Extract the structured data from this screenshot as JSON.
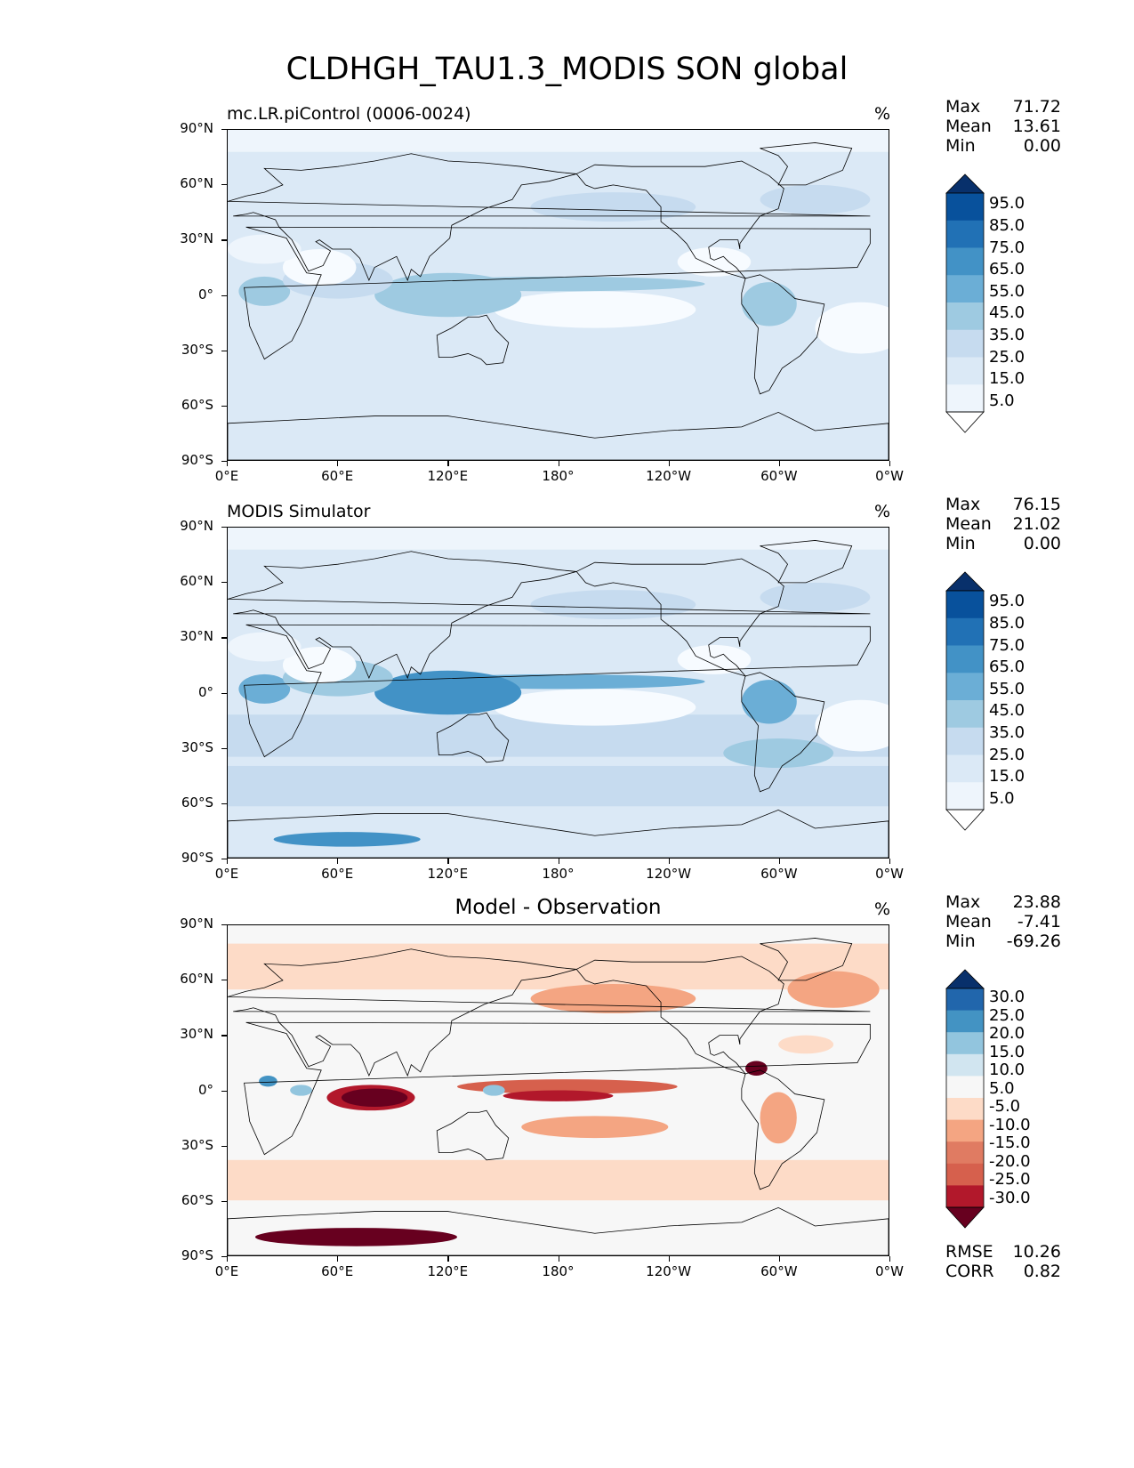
{
  "figure": {
    "title": "CLDHGH_TAU1.3_MODIS SON global",
    "lat_ticks": [
      "90°N",
      "60°N",
      "30°N",
      "0°",
      "30°S",
      "60°S",
      "90°S"
    ],
    "lon_ticks": [
      "0°E",
      "60°E",
      "120°E",
      "180°",
      "120°W",
      "60°W",
      "0°W"
    ]
  },
  "panels": [
    {
      "id": "model",
      "title_left": "mc.LR.piControl (0006-0024)",
      "title_center": "",
      "units": "%",
      "stats": [
        {
          "label": "Max",
          "value": "71.72"
        },
        {
          "label": "Mean",
          "value": "13.61"
        },
        {
          "label": "Min",
          "value": "0.00"
        }
      ],
      "colorbar": {
        "labels": [
          "95.0",
          "85.0",
          "75.0",
          "65.0",
          "55.0",
          "45.0",
          "35.0",
          "25.0",
          "15.0",
          "5.0"
        ],
        "colors": [
          "#08306b",
          "#08519c",
          "#2171b5",
          "#4292c6",
          "#6baed6",
          "#9ecae1",
          "#c6dbef",
          "#dbe9f6",
          "#eef5fc",
          "#ffffff"
        ]
      },
      "palette": "blues"
    },
    {
      "id": "obs",
      "title_left": "MODIS Simulator",
      "title_center": "",
      "units": "%",
      "stats": [
        {
          "label": "Max",
          "value": "76.15"
        },
        {
          "label": "Mean",
          "value": "21.02"
        },
        {
          "label": "Min",
          "value": "0.00"
        }
      ],
      "colorbar": {
        "labels": [
          "95.0",
          "85.0",
          "75.0",
          "65.0",
          "55.0",
          "45.0",
          "35.0",
          "25.0",
          "15.0",
          "5.0"
        ],
        "colors": [
          "#08306b",
          "#08519c",
          "#2171b5",
          "#4292c6",
          "#6baed6",
          "#9ecae1",
          "#c6dbef",
          "#dbe9f6",
          "#eef5fc",
          "#ffffff"
        ]
      },
      "palette": "blues"
    },
    {
      "id": "diff",
      "title_left": "",
      "title_center": "Model - Observation",
      "units": "%",
      "stats": [
        {
          "label": "Max",
          "value": "23.88"
        },
        {
          "label": "Mean",
          "value": "-7.41"
        },
        {
          "label": "Min",
          "value": "-69.26"
        }
      ],
      "colorbar": {
        "labels": [
          "30.0",
          "25.0",
          "20.0",
          "15.0",
          "10.0",
          "5.0",
          "-5.0",
          "-10.0",
          "-15.0",
          "-20.0",
          "-25.0",
          "-30.0"
        ],
        "colors": [
          "#08306b",
          "#2166ac",
          "#4393c3",
          "#92c5de",
          "#d1e5f0",
          "#f7f7f7",
          "#fddbc7",
          "#f4a582",
          "#e07b62",
          "#d6604d",
          "#b2182b",
          "#67001f"
        ]
      },
      "palette": "rdbu",
      "footer": [
        {
          "label": "RMSE",
          "value": "10.26"
        },
        {
          "label": "CORR",
          "value": "0.82"
        }
      ]
    }
  ]
}
